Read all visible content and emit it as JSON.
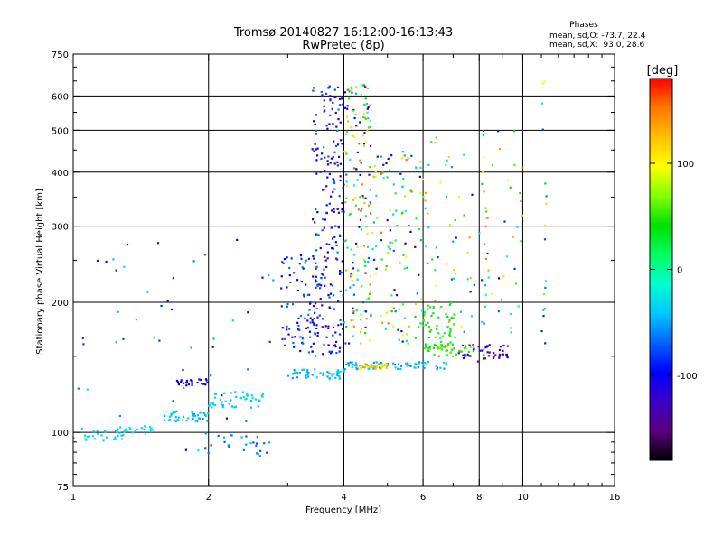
{
  "chart_data": {
    "type": "scatter",
    "title": "Tromsø 20140827 16:12:00-16:13:43",
    "subtitle": "RwPretec (8p)",
    "xlabel": "Frequency [MHz]",
    "ylabel": "Stationary phase Virtual Height [km]",
    "x_scale": "log",
    "y_scale": "log",
    "xlim": [
      1,
      16
    ],
    "ylim": [
      75,
      750
    ],
    "x_ticks": [
      1,
      2,
      4,
      6,
      8,
      10,
      16
    ],
    "x_tick_labels": [
      "1",
      "2",
      "4",
      "6",
      "8",
      "10",
      "16"
    ],
    "y_ticks": [
      75,
      100,
      200,
      300,
      400,
      500,
      600,
      750
    ],
    "y_tick_labels": [
      "75",
      "100",
      "200",
      "300",
      "400",
      "500",
      "600",
      "750"
    ],
    "grid": true,
    "phase_stats": {
      "header": "Phases",
      "line_o": "mean, sd,O: -73.7, 22.4",
      "line_x": "mean, sd,X:  93.0, 28.6"
    },
    "colorbar": {
      "label": "[deg]",
      "min": -180,
      "max": 180,
      "ticks": [
        100,
        0,
        -100
      ],
      "tick_labels": [
        "100",
        "0",
        "-100"
      ],
      "colors": [
        "#000000",
        "#5a0080",
        "#3a00c8",
        "#0000ff",
        "#0064ff",
        "#00c8ff",
        "#00ffd0",
        "#00ff60",
        "#00e000",
        "#80ff00",
        "#ffff00",
        "#ffc000",
        "#ff7800",
        "#ff0000"
      ]
    },
    "clusters": [
      {
        "name": "low-F trace",
        "x": [
          1.0,
          1.3
        ],
        "y": [
          95,
          103
        ],
        "count": 30,
        "phase": [
          -45,
          -25
        ]
      },
      {
        "name": "low-F trace 2",
        "x": [
          1.25,
          1.55
        ],
        "y": [
          99,
          103
        ],
        "count": 18,
        "phase": [
          -40,
          -20
        ]
      },
      {
        "name": "1.6-2 band",
        "x": [
          1.55,
          2.0
        ],
        "y": [
          106,
          112
        ],
        "count": 40,
        "phase": [
          -55,
          -35
        ]
      },
      {
        "name": "2-2.6 band",
        "x": [
          2.0,
          2.65
        ],
        "y": [
          114,
          125
        ],
        "count": 45,
        "phase": [
          -45,
          -25
        ]
      },
      {
        "name": "blue cluster 1.7-2",
        "x": [
          1.7,
          2.0
        ],
        "y": [
          128,
          133
        ],
        "count": 25,
        "phase": [
          -115,
          -95
        ]
      },
      {
        "name": "lower cluster 2",
        "x": [
          1.95,
          2.75
        ],
        "y": [
          88,
          100
        ],
        "count": 25,
        "phase": [
          -80,
          -40
        ]
      },
      {
        "name": "E trace 3-4",
        "x": [
          3.0,
          4.0
        ],
        "y": [
          133,
          140
        ],
        "count": 45,
        "phase": [
          -60,
          -30
        ]
      },
      {
        "name": "F trace 4-7",
        "x": [
          4.0,
          7.0
        ],
        "y": [
          140,
          146
        ],
        "count": 70,
        "phase": [
          -60,
          -30
        ]
      },
      {
        "name": "orange trace 4.3-5",
        "x": [
          4.3,
          5.0
        ],
        "y": [
          140,
          144
        ],
        "count": 30,
        "phase": [
          80,
          140
        ]
      },
      {
        "name": "purple trace 7.5-9.5",
        "x": [
          7.2,
          9.4
        ],
        "y": [
          145,
          160
        ],
        "count": 50,
        "phase": [
          -150,
          -115
        ]
      },
      {
        "name": "green blob 6-7",
        "x": [
          6.0,
          7.1
        ],
        "y": [
          155,
          200
        ],
        "count": 60,
        "phase": [
          20,
          60
        ]
      },
      {
        "name": "green trace 6-8",
        "x": [
          6.0,
          8.2
        ],
        "y": [
          150,
          160
        ],
        "count": 40,
        "phase": [
          30,
          70
        ]
      },
      {
        "name": "F2 spread 3.5-4",
        "x": [
          3.4,
          4.0
        ],
        "y": [
          150,
          640
        ],
        "count": 220,
        "phase": [
          -130,
          -60
        ]
      },
      {
        "name": "F2 spread 4-4.5",
        "x": [
          4.0,
          4.6
        ],
        "y": [
          160,
          650
        ],
        "count": 160,
        "phase": [
          -140,
          160
        ]
      },
      {
        "name": "F2 spread 4.5-6",
        "x": [
          4.5,
          6.0
        ],
        "y": [
          160,
          450
        ],
        "count": 120,
        "phase": [
          -120,
          160
        ]
      },
      {
        "name": "F2 spread 3-3.5",
        "x": [
          2.9,
          3.5
        ],
        "y": [
          150,
          260
        ],
        "count": 80,
        "phase": [
          -110,
          -60
        ]
      },
      {
        "name": "mixed 6-8",
        "x": [
          6.0,
          8.5
        ],
        "y": [
          170,
          500
        ],
        "count": 60,
        "phase": [
          -120,
          150
        ]
      },
      {
        "name": "upper 8-10",
        "x": [
          8.0,
          10.0
        ],
        "y": [
          170,
          500
        ],
        "count": 40,
        "phase": [
          -100,
          150
        ]
      },
      {
        "name": "11 MHz column",
        "x": [
          11.0,
          11.3
        ],
        "y": [
          130,
          650
        ],
        "count": 18,
        "phase": [
          -100,
          120
        ]
      },
      {
        "name": "sparse low-F",
        "x": [
          1.0,
          2.8
        ],
        "y": [
          88,
          280
        ],
        "count": 50,
        "phase": [
          -130,
          -20
        ]
      }
    ]
  }
}
